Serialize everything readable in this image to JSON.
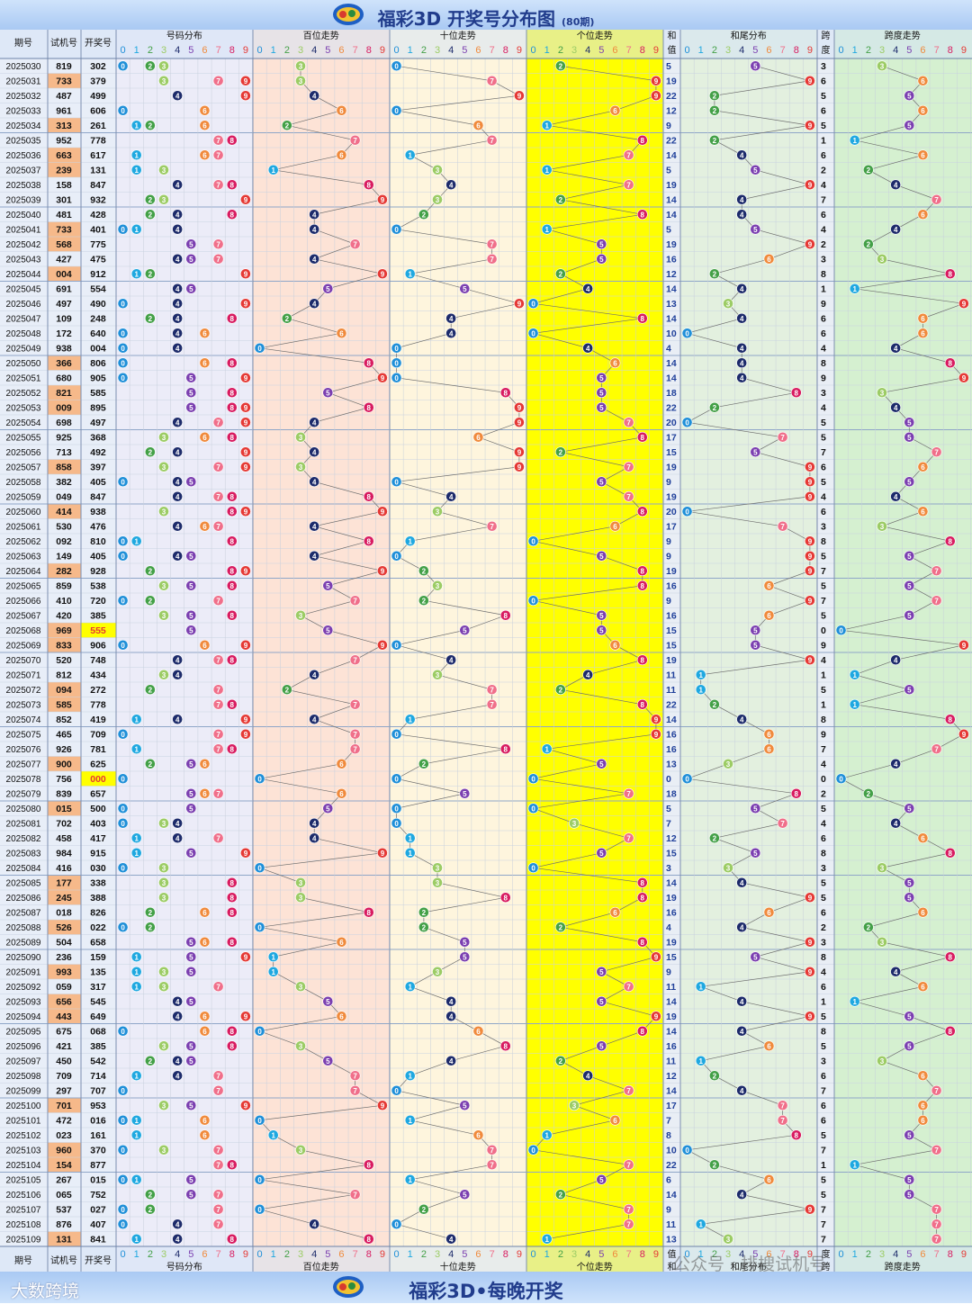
{
  "header": {
    "title": "福彩3D 开奖号分布图",
    "subtitle": "(80期)"
  },
  "footer": {
    "title": "福彩3D•每晚开奖",
    "brand": "大数跨境",
    "watermark": "公众号 · 排搜试机号"
  },
  "columns": {
    "period": "期号",
    "trial": "试机号",
    "draw": "开奖号",
    "distribution": "号码分布",
    "hundreds": "百位走势",
    "tens": "十位走势",
    "units": "个位走势",
    "sum": "和值",
    "sum_tail": "和尾分布",
    "span": "跨度",
    "span_trend": "跨度走势"
  },
  "colors": {
    "digit": [
      "#1f8fd8",
      "#1fa8e0",
      "#43a047",
      "#9ccc65",
      "#1d2b6b",
      "#7b3fb0",
      "#f08a3c",
      "#f06f8a",
      "#d81b60",
      "#e53935"
    ],
    "band_dist": "#ececf8",
    "band_hundreds": "#fde3d6",
    "band_tens": "#fef5dd",
    "band_units": "#ffff00",
    "band_sum": "#e9eef5",
    "band_tail": "#e3f0df",
    "band_span": "#d5f0d0",
    "trial_highlight": "#f6b98a",
    "draw_highlight": "#ffff00",
    "label_bg": "#d6e4f6"
  },
  "chart_data": {
    "type": "table",
    "title": "福彩3D 开奖号分布图",
    "periods": [
      "2025030",
      "2025031",
      "2025032",
      "2025033",
      "2025034",
      "2025035",
      "2025036",
      "2025037",
      "2025038",
      "2025039",
      "2025040",
      "2025041",
      "2025042",
      "2025043",
      "2025044",
      "2025045",
      "2025046",
      "2025047",
      "2025048",
      "2025049",
      "2025050",
      "2025051",
      "2025052",
      "2025053",
      "2025054",
      "2025055",
      "2025056",
      "2025057",
      "2025058",
      "2025059",
      "2025060",
      "2025061",
      "2025062",
      "2025063",
      "2025064",
      "2025065",
      "2025066",
      "2025067",
      "2025068",
      "2025069",
      "2025070",
      "2025071",
      "2025072",
      "2025073",
      "2025074",
      "2025075",
      "2025076",
      "2025077",
      "2025078",
      "2025079",
      "2025080",
      "2025081",
      "2025082",
      "2025083",
      "2025084",
      "2025085",
      "2025086",
      "2025087",
      "2025088",
      "2025089",
      "2025090",
      "2025091",
      "2025092",
      "2025093",
      "2025094",
      "2025095",
      "2025096",
      "2025097",
      "2025098",
      "2025099",
      "2025100",
      "2025101",
      "2025102",
      "2025103",
      "2025104",
      "2025105",
      "2025106",
      "2025107",
      "2025108",
      "2025109"
    ],
    "trial": [
      "819",
      "733",
      "487",
      "961",
      "313",
      "952",
      "663",
      "239",
      "158",
      "301",
      "481",
      "733",
      "568",
      "427",
      "004",
      "691",
      "497",
      "109",
      "172",
      "938",
      "366",
      "680",
      "821",
      "009",
      "698",
      "925",
      "713",
      "858",
      "382",
      "049",
      "414",
      "530",
      "092",
      "149",
      "282",
      "859",
      "410",
      "420",
      "969",
      "833",
      "520",
      "812",
      "094",
      "585",
      "852",
      "465",
      "926",
      "900",
      "756",
      "839",
      "015",
      "702",
      "458",
      "984",
      "416",
      "177",
      "245",
      "018",
      "526",
      "504",
      "236",
      "993",
      "059",
      "656",
      "443",
      "675",
      "421",
      "450",
      "709",
      "297",
      "701",
      "472",
      "023",
      "960",
      "154",
      "267",
      "065",
      "537",
      "876",
      "131"
    ],
    "draw": [
      "302",
      "379",
      "499",
      "606",
      "261",
      "778",
      "617",
      "131",
      "847",
      "932",
      "428",
      "401",
      "775",
      "475",
      "912",
      "554",
      "490",
      "248",
      "640",
      "004",
      "806",
      "905",
      "585",
      "895",
      "497",
      "368",
      "492",
      "397",
      "405",
      "847",
      "938",
      "476",
      "810",
      "405",
      "928",
      "538",
      "720",
      "385",
      "555",
      "906",
      "748",
      "434",
      "272",
      "778",
      "419",
      "709",
      "781",
      "625",
      "000",
      "657",
      "500",
      "403",
      "417",
      "915",
      "030",
      "338",
      "388",
      "826",
      "022",
      "658",
      "159",
      "135",
      "317",
      "545",
      "649",
      "068",
      "385",
      "542",
      "714",
      "707",
      "953",
      "016",
      "161",
      "370",
      "877",
      "015",
      "752",
      "027",
      "407",
      "841"
    ],
    "sum": [
      "5",
      "19",
      "22",
      "12",
      "9",
      "22",
      "14",
      "5",
      "19",
      "14",
      "14",
      "5",
      "19",
      "16",
      "12",
      "14",
      "13",
      "14",
      "10",
      "4",
      "14",
      "14",
      "18",
      "22",
      "20",
      "17",
      "15",
      "19",
      "9",
      "19",
      "20",
      "17",
      "9",
      "9",
      "19",
      "16",
      "9",
      "16",
      "15",
      "15",
      "19",
      "11",
      "11",
      "22",
      "14",
      "16",
      "16",
      "13",
      "0",
      "18",
      "5",
      "7",
      "12",
      "15",
      "3",
      "14",
      "19",
      "16",
      "4",
      "19",
      "15",
      "9",
      "11",
      "14",
      "19",
      "14",
      "16",
      "11",
      "12",
      "14",
      "17",
      "7",
      "8",
      "10",
      "22",
      "6",
      "14",
      "9",
      "11",
      "13"
    ],
    "span": [
      "3",
      "6",
      "5",
      "6",
      "5",
      "1",
      "6",
      "2",
      "4",
      "7",
      "6",
      "4",
      "2",
      "3",
      "8",
      "1",
      "9",
      "6",
      "6",
      "4",
      "8",
      "9",
      "3",
      "4",
      "5",
      "5",
      "7",
      "6",
      "5",
      "4",
      "6",
      "3",
      "8",
      "5",
      "7",
      "5",
      "7",
      "5",
      "0",
      "9",
      "4",
      "1",
      "5",
      "1",
      "8",
      "9",
      "7",
      "4",
      "0",
      "2",
      "5",
      "4",
      "6",
      "8",
      "3",
      "5",
      "5",
      "6",
      "2",
      "3",
      "8",
      "4",
      "6",
      "1",
      "5",
      "8",
      "5",
      "3",
      "6",
      "7",
      "6",
      "6",
      "5",
      "7",
      "1",
      "5",
      "5",
      "7",
      "7",
      "7"
    ],
    "trial_highlight": [
      1,
      4,
      6,
      7,
      11,
      12,
      14,
      20,
      22,
      23,
      27,
      30,
      34,
      38,
      39,
      42,
      43,
      47,
      50,
      55,
      56,
      58,
      61,
      63,
      64,
      70,
      73,
      74,
      79
    ],
    "draw_highlight": [
      38,
      48
    ]
  }
}
